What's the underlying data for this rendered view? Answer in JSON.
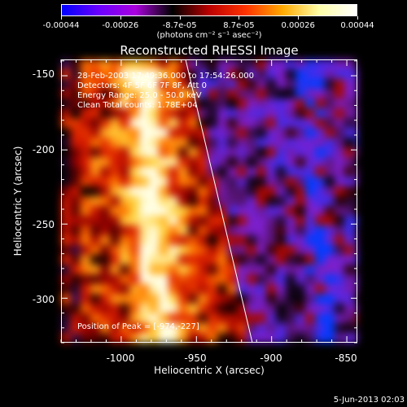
{
  "colorbar": {
    "tick_labels": [
      "-0.00044",
      "-0.00026",
      "-8.7e-05",
      "8.7e-05",
      "0.00026",
      "0.00044"
    ],
    "units": "(photons cm⁻² s⁻¹ asec⁻²)",
    "colors": [
      "#0000ff",
      "#6a00ff",
      "#aa00dd",
      "#000000",
      "#bb0000",
      "#ff3300",
      "#ffaa00",
      "#ffffaa",
      "#ffffff"
    ]
  },
  "plot": {
    "title": "Reconstructed RHESSI Image",
    "info_lines": [
      "28-Feb-2003 17:49:36.000 to 17:54:26.000",
      "Detectors: 4F 5F 6F 7F 8F, Att 0",
      "Energy Range: 25.0 - 50.0 keV",
      "Clean    Total counts: 1.78E+04"
    ],
    "peak_label": "Position of Peak = [-974,-227]",
    "x_axis_title": "Heliocentric X (arcsec)",
    "y_axis_title": "Heliocentric Y (arcsec)",
    "x_ticks": [
      "-1000",
      "-950",
      "-900",
      "-850"
    ],
    "y_ticks": [
      "-150",
      "-200",
      "-250",
      "-300"
    ]
  },
  "footer": {
    "date": "5-Jun-2013 02:03"
  }
}
